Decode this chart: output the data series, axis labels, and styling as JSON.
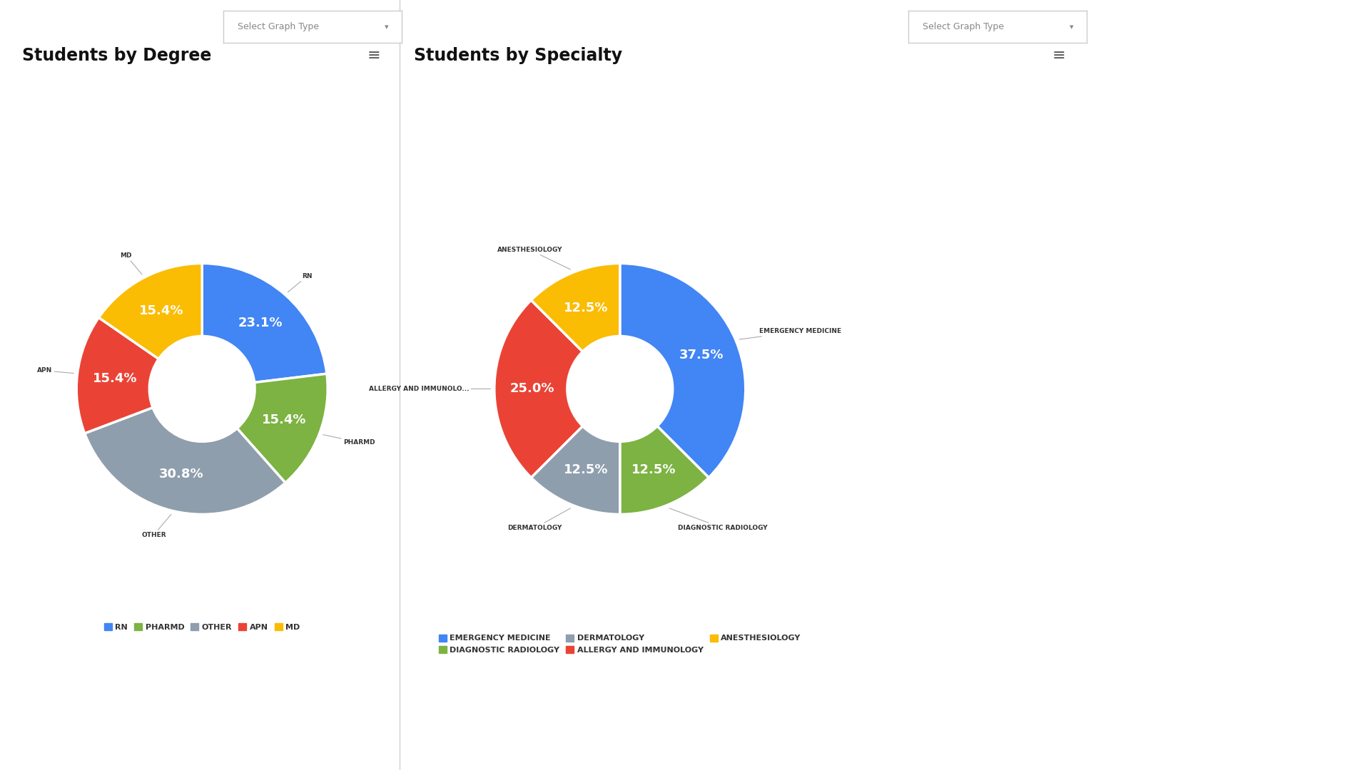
{
  "background_color": "#ffffff",
  "left_chart": {
    "title": "Students by Degree",
    "labels": [
      "RN",
      "PHARMD",
      "OTHER",
      "APN",
      "MD"
    ],
    "values": [
      23.1,
      15.4,
      30.8,
      15.4,
      15.4
    ],
    "colors": [
      "#4285F4",
      "#7CB342",
      "#8E9EAD",
      "#EA4335",
      "#FBBC04"
    ],
    "startangle": 90,
    "legend_labels": [
      "RN",
      "PHARMD",
      "OTHER",
      "APN",
      "MD"
    ],
    "legend_colors": [
      "#4285F4",
      "#7CB342",
      "#8E9EAD",
      "#EA4335",
      "#FBBC04"
    ]
  },
  "right_chart": {
    "title": "Students by Specialty",
    "labels": [
      "EMERGENCY MEDICINE",
      "DIAGNOSTIC RADIOLOGY",
      "DERMATOLOGY",
      "ALLERGY AND IMMUNOLO...",
      "ANESTHESIOLOGY"
    ],
    "values": [
      37.5,
      12.5,
      12.5,
      25.0,
      12.5
    ],
    "colors": [
      "#4285F4",
      "#7CB342",
      "#8E9EAD",
      "#EA4335",
      "#FBBC04"
    ],
    "startangle": 90,
    "legend_labels": [
      "EMERGENCY MEDICINE",
      "DIAGNOSTIC RADIOLOGY",
      "DERMATOLOGY",
      "ALLERGY AND IMMUNOLOGY",
      "ANESTHESIOLOGY"
    ],
    "legend_colors": [
      "#4285F4",
      "#7CB342",
      "#8E9EAD",
      "#EA4335",
      "#FBBC04"
    ]
  },
  "title_fontsize": 17,
  "label_fontsize": 6.5,
  "pct_fontsize": 13,
  "legend_fontsize": 8,
  "divider_color": "#d0d0d0",
  "dropdown_border": "#cccccc",
  "hamburger_color": "#555555",
  "dropdown_text": "Select Graph Type"
}
